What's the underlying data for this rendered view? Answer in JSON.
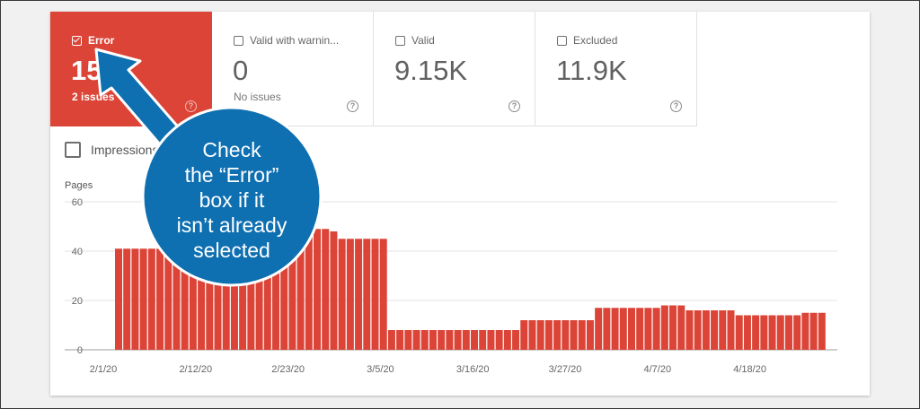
{
  "tiles": [
    {
      "id": "error",
      "label": "Error",
      "value": "15",
      "sub": "2 issues",
      "selected": true,
      "color": "#db4437"
    },
    {
      "id": "valid-with-warnings",
      "label": "Valid with warnin...",
      "value": "0",
      "sub": "No issues",
      "selected": false
    },
    {
      "id": "valid",
      "label": "Valid",
      "value": "9.15K",
      "sub": "",
      "selected": false
    },
    {
      "id": "excluded",
      "label": "Excluded",
      "value": "11.9K",
      "sub": "",
      "selected": false
    }
  ],
  "impressions": {
    "label": "Impressions",
    "checked": false
  },
  "callout": {
    "lines": [
      "Check",
      "the “Error”",
      "box if it",
      "isn’t already",
      "selected"
    ],
    "color": "#0e6fb1"
  },
  "chart_data": {
    "type": "bar",
    "ylabel": "Pages",
    "ylim": [
      0,
      60
    ],
    "yticks": [
      0,
      20,
      40,
      60
    ],
    "xticks": [
      "2/1/20",
      "2/12/20",
      "2/23/20",
      "3/5/20",
      "3/16/20",
      "3/27/20",
      "4/7/20",
      "4/18/20"
    ],
    "start_label": "2/1/20",
    "color": "#db4437",
    "values": [
      41,
      41,
      41,
      41,
      41,
      41,
      42,
      42,
      43,
      44,
      44,
      45,
      46,
      46,
      47,
      48,
      48,
      48,
      48,
      48,
      49,
      49,
      49,
      49,
      49,
      49,
      48,
      45,
      45,
      45,
      45,
      45,
      45,
      8,
      8,
      8,
      8,
      8,
      8,
      8,
      8,
      8,
      8,
      8,
      8,
      8,
      8,
      8,
      8,
      12,
      12,
      12,
      12,
      12,
      12,
      12,
      12,
      12,
      17,
      17,
      17,
      17,
      17,
      17,
      17,
      17,
      18,
      18,
      18,
      16,
      16,
      16,
      16,
      16,
      16,
      14,
      14,
      14,
      14,
      14,
      14,
      14,
      14,
      15,
      15,
      15
    ]
  }
}
